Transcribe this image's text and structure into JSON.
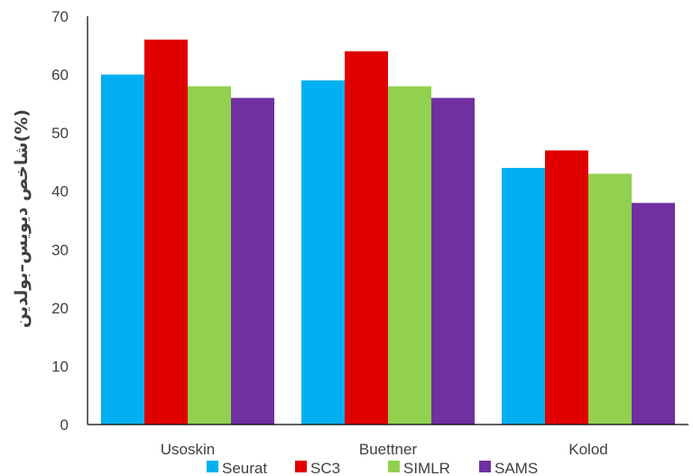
{
  "chart_data": {
    "type": "bar",
    "categories": [
      "Usoskin",
      "Buettner",
      "Kolod"
    ],
    "series": [
      {
        "name": "Seurat",
        "color": "#00B0F0",
        "values": [
          60,
          59,
          44
        ]
      },
      {
        "name": "SC3",
        "color": "#E00000",
        "values": [
          66,
          64,
          47
        ]
      },
      {
        "name": "SIMLR",
        "color": "#92D050",
        "values": [
          58,
          58,
          43
        ]
      },
      {
        "name": "SAMS",
        "color": "#7030A0",
        "values": [
          56,
          56,
          38
        ]
      }
    ],
    "ylabel": "شاخص دیویس–بولدین(%)",
    "xlabel": "",
    "ylim": [
      0,
      70
    ],
    "yticks": [
      0,
      10,
      20,
      30,
      40,
      50,
      60,
      70
    ],
    "grid": false,
    "legend_position": "bottom"
  }
}
